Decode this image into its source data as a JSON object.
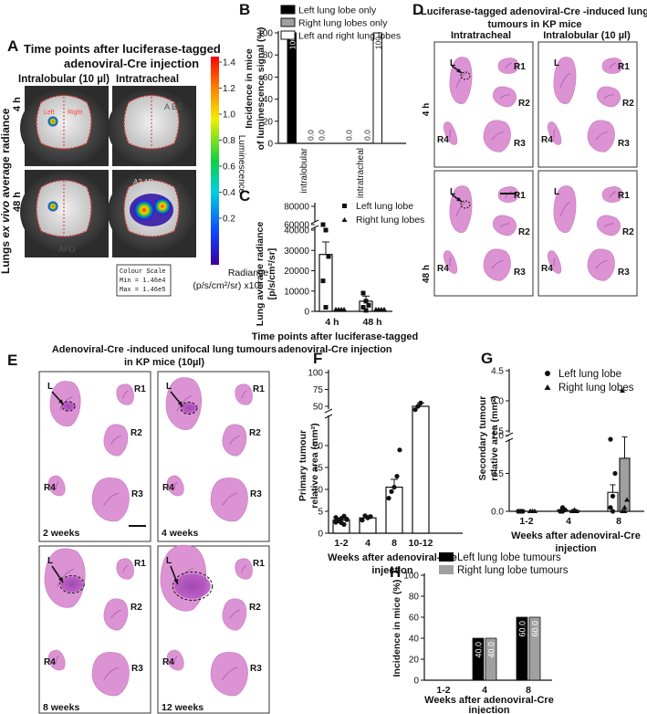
{
  "panels": {
    "A": {
      "letter": "A",
      "title_line1": "Time points after luciferase-tagged",
      "title_line2": "adenoviral-Cre injection",
      "col_intralobular": "Intralobular (10 µl)",
      "col_intratracheal": "Intratracheal",
      "row_4h": "4 h",
      "row_48h": "48 h",
      "side_label_a": "Lungs ",
      "side_label_b": "ex vivo",
      "side_label_c": " average radiance",
      "colorbar_title": "Luminescence",
      "colorbar_ticks": [
        "1.4",
        "1.2",
        "1.0",
        "0.8",
        "0.6",
        "0.4",
        "0.2"
      ],
      "colorbar_unit_1": "Radiance",
      "colorbar_unit_2": "(p/s/cm²/sr) x10⁵",
      "colour_scale_title": "Colour Scale",
      "colour_scale_min": "Min = 1.46e4",
      "colour_scale_max": "Max = 1.46e5",
      "img_tags": [
        "Left",
        "Right",
        "A BE",
        "A2 1R",
        "AFO"
      ]
    },
    "D": {
      "letter": "D",
      "title_line1": "Luciferase-tagged adenoviral-Cre -induced lung",
      "title_line2": "tumours in KP mice",
      "col_intratracheal": "Intratracheal",
      "col_intralobular": "Intralobular (10 µl)",
      "row_4h": "4 h",
      "row_48h": "48 h",
      "lobes": [
        "L",
        "R1",
        "R2",
        "R3",
        "R4"
      ]
    },
    "E": {
      "letter": "E",
      "title_line1": "Adenoviral-Cre -induced unifocal lung tumours",
      "title_line2": "in KP mice (10µl)",
      "tiles": [
        "2 weeks",
        "4 weeks",
        "8 weeks",
        "12 weeks"
      ],
      "lobes": [
        "L",
        "R1",
        "R2",
        "R3",
        "R4"
      ]
    }
  },
  "colors": {
    "histology": "#d98ad0",
    "bar_black": "#000000",
    "bar_grey": "#a0a0a0",
    "bar_white": "#ffffff"
  },
  "chart_data": [
    {
      "panel": "B",
      "type": "bar",
      "categories": [
        "intralobular",
        "intratracheal"
      ],
      "ylabel": "Incidence in mice of luminescence signal (%)",
      "ylim": [
        0,
        100
      ],
      "yticks": [
        0,
        20,
        40,
        60,
        80,
        100
      ],
      "legend": "top-right",
      "series": [
        {
          "name": "Left lung lobe only",
          "values": [
            100,
            0
          ],
          "labels": [
            "100",
            "0.0"
          ]
        },
        {
          "name": "Right lung lobes only",
          "values": [
            0,
            0
          ],
          "labels": [
            "0.0",
            "0.0"
          ]
        },
        {
          "name": "Left and right lung lobes",
          "values": [
            0,
            100
          ],
          "labels": [
            "0.0",
            "100"
          ]
        }
      ]
    },
    {
      "panel": "C",
      "type": "bar",
      "categories": [
        "4 h",
        "48 h"
      ],
      "ylabel": "Lung average radiance [p/s/cm²/sr]",
      "xlabel": "Time points after luciferase-tagged adenoviral-Cre injection",
      "yticks": [
        "0",
        "10000",
        "20000",
        "30000",
        "40000",
        "60000",
        "80000"
      ],
      "y_axis_break": [
        40000,
        60000
      ],
      "legend": "top-right",
      "series": [
        {
          "name": "Left lung lobe",
          "mean": [
            28000,
            5000
          ],
          "sem": [
            13000,
            2500
          ],
          "points": [
            [
              60000,
              40000,
              27000,
              15000,
              2000
            ],
            [
              9000,
              5000,
              3000,
              2000,
              500
            ]
          ]
        },
        {
          "name": "Right lung lobes",
          "mean": [
            0,
            0
          ],
          "points": [
            [
              0,
              0,
              0,
              0
            ],
            [
              0,
              0,
              0,
              0
            ]
          ]
        }
      ]
    },
    {
      "panel": "F",
      "type": "bar",
      "categories": [
        "1-2",
        "4",
        "8",
        "10-12"
      ],
      "ylabel": "Primary tumour relative area (mm²)",
      "xlabel": "Weeks after adenoviral-Cre injection",
      "yticks": [
        "0",
        "5",
        "10",
        "15",
        "20",
        "25",
        "50",
        "75",
        "100"
      ],
      "y_axis_break": [
        25,
        50
      ],
      "series": [
        {
          "values": [
            3,
            3.5,
            10.5,
            50
          ],
          "sem": [
            0.4,
            0.5,
            1.8,
            5
          ],
          "points": [
            [
              2.5,
              3.0,
              3.4,
              2.0,
              3.2,
              3.6,
              2.8,
              2.4,
              3.9,
              3.1
            ],
            [
              3.0,
              4.0,
              3.5,
              3.8
            ],
            [
              8,
              9.5,
              10.5,
              13,
              19
            ],
            [
              45,
              50,
              55
            ]
          ]
        }
      ]
    },
    {
      "panel": "G",
      "type": "bar",
      "categories": [
        "1-2",
        "4",
        "8"
      ],
      "ylabel": "Secondary tumour relative area (mm²)",
      "xlabel": "Weeks after adenoviral-Cre injection",
      "yticks": [
        "0.0",
        "0.5",
        "1.0",
        "1.5",
        "3.0",
        "4.5"
      ],
      "y_axis_break": [
        1.0,
        1.5
      ],
      "legend": "top-right",
      "series": [
        {
          "name": "Left lung lobe",
          "values": [
            0,
            0.02,
            0.25
          ],
          "sem": [
            0,
            0.01,
            0.1
          ],
          "points": [
            [
              0,
              0,
              0,
              0,
              0
            ],
            [
              0,
              0,
              0.02,
              0,
              0.05
            ],
            [
              0.05,
              0.2,
              0.5,
              0.95,
              0
            ]
          ]
        },
        {
          "name": "Right lung lobes",
          "values": [
            0,
            0.01,
            0.7
          ],
          "sem": [
            0,
            0.01,
            0.5
          ],
          "points": [
            [
              0,
              0,
              0,
              0,
              0
            ],
            [
              0,
              0.02,
              0,
              0,
              0
            ],
            [
              0,
              0.05,
              0.15,
              3.5,
              0
            ]
          ]
        }
      ]
    },
    {
      "panel": "H",
      "type": "bar",
      "categories": [
        "1-2",
        "4",
        "8"
      ],
      "ylabel": "Incidence in mice (%)",
      "xlabel": "Weeks after adenoviral-Cre injection",
      "ylim": [
        0,
        100
      ],
      "yticks": [
        0,
        20,
        40,
        60,
        80,
        100
      ],
      "legend": "top-right",
      "series": [
        {
          "name": "Left lung lobe tumours",
          "values": [
            0,
            40,
            60
          ],
          "labels": [
            "",
            "40.0",
            "60.0"
          ]
        },
        {
          "name": "Right lung lobe tumours",
          "values": [
            0,
            40,
            60
          ],
          "labels": [
            "",
            "40.0",
            "60.0"
          ]
        }
      ]
    }
  ]
}
